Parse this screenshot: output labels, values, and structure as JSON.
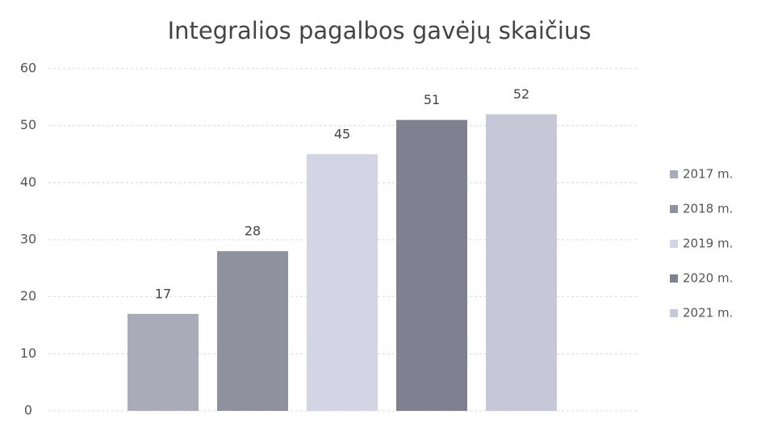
{
  "chart_data": {
    "type": "bar",
    "title": "Integralios pagalbos gavėjų skaičius",
    "categories": [
      null
    ],
    "series": [
      {
        "name": "2017 m.",
        "color": "#a9abb9",
        "values": [
          17
        ]
      },
      {
        "name": "2018 m.",
        "color": "#8f919e",
        "values": [
          28
        ]
      },
      {
        "name": "2019 m.",
        "color": "#d3d5e5",
        "values": [
          45
        ]
      },
      {
        "name": "2020 m.",
        "color": "#7f8191",
        "values": [
          51
        ]
      },
      {
        "name": "2021 m.",
        "color": "#c6c8d8",
        "values": [
          52
        ]
      }
    ],
    "ylim": [
      0,
      60
    ],
    "yticks": [
      0,
      10,
      20,
      30,
      40,
      50,
      60
    ],
    "grid": true,
    "legend": "right",
    "data_labels": true
  }
}
